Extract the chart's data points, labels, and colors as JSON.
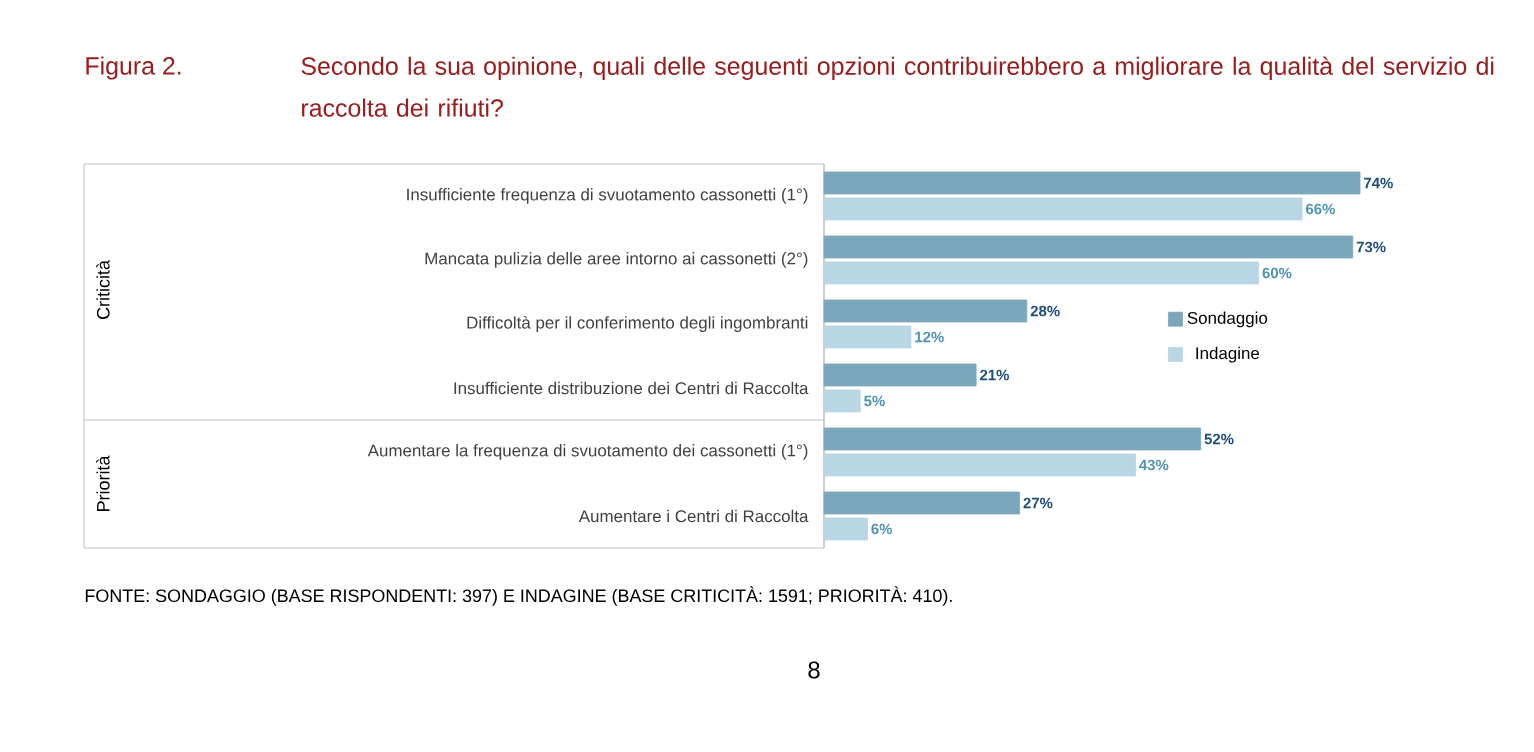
{
  "chart_data": {
    "type": "bar",
    "orientation": "horizontal",
    "title": "Figura 2.",
    "subtitle": "Secondo la sua opinione, quali delle seguenti opzioni contribuirebbero a migliorare la qualità del servizio di raccolta dei rifiuti?",
    "categories": [
      "Insufficiente frequenza di svuotamento cassonetti (1°)",
      "Mancata pulizia delle aree intorno ai cassonetti (2°)",
      "Difficoltà per il conferimento degli ingombranti",
      "Insufficiente distribuzione dei Centri di Raccolta",
      "Aumentare la frequenza di svuotamento dei cassonetti (1°)",
      "Aumentare i Centri di Raccolta"
    ],
    "series": [
      {
        "name": "Sondaggio",
        "color": "#7ba7bc",
        "values": [
          74,
          73,
          28,
          21,
          52,
          27
        ],
        "value_labels": [
          "74%",
          "73%",
          "28%",
          "21%",
          "52%",
          "27%"
        ]
      },
      {
        "name": "Indagine",
        "color": "#b8d6e4",
        "values": [
          66,
          60,
          12,
          5,
          43,
          6
        ],
        "value_labels": [
          "66%",
          "60%",
          "12%",
          "5%",
          "43%",
          "6%"
        ]
      }
    ],
    "legend": "right",
    "annotations": [
      "Criticità",
      "Priorità",
      "FONTE:   SONDAGGIO (BASE RISPONDENTI: 397) E INDAGINE (BASE CRITICITÀ: 1591; PRIORITÀ: 410).",
      "8"
    ]
  }
}
